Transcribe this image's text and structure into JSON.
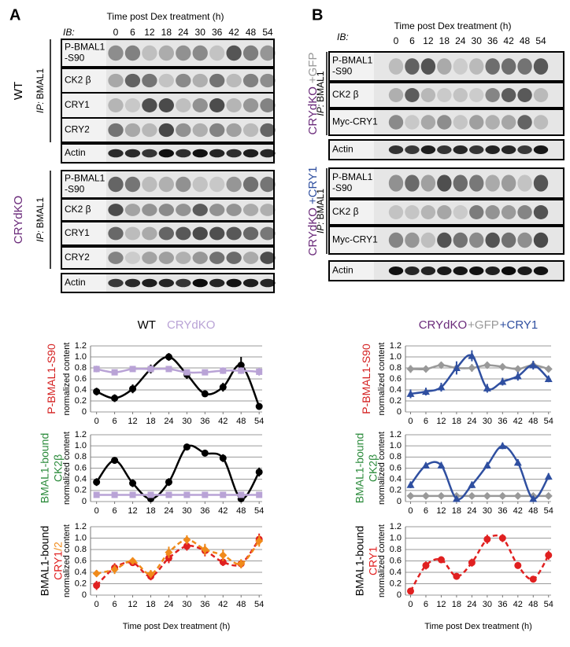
{
  "blots": [
    {
      "label": "A",
      "title": "Time post Dex treatment (h)",
      "ib": "IB:",
      "times": [
        "0",
        "6",
        "12",
        "18",
        "24",
        "30",
        "36",
        "42",
        "48",
        "54"
      ],
      "groups": [
        {
          "side": [
            {
              "text": "WT",
              "color": "#000000"
            }
          ],
          "ip": "IP:",
          "ip_target": "BMAL1",
          "rows": [
            [
              "P-BMAL1",
              "-S90"
            ],
            [
              "CK2 β"
            ],
            [
              "CRY1"
            ],
            [
              "CRY2"
            ],
            [
              "Actin"
            ]
          ]
        },
        {
          "side": [
            {
              "text": "CRYdKO",
              "color": "#6a2a7a"
            }
          ],
          "ip": "IP:",
          "ip_target": "BMAL1",
          "rows": [
            [
              "P-BMAL1",
              "-S90"
            ],
            [
              "CK2 β"
            ],
            [
              "CRY1"
            ],
            [
              "CRY2"
            ],
            [
              "Actin"
            ]
          ]
        }
      ]
    },
    {
      "label": "B",
      "title": "Time post Dex treatment (h)",
      "ib": "IB:",
      "times": [
        "0",
        "6",
        "12",
        "18",
        "24",
        "30",
        "36",
        "42",
        "48",
        "54"
      ],
      "groups": [
        {
          "side": [
            {
              "text": "CRYdKO",
              "color": "#6a2a7a"
            },
            {
              "text": "+GFP",
              "color": "#999999"
            }
          ],
          "ip": "IP:",
          "ip_target": "BMAL1",
          "rows": [
            [
              "P-BMAL1",
              "-S90"
            ],
            [
              "CK2 β"
            ],
            [
              "Myc-CRY1"
            ],
            [
              "Actin"
            ]
          ]
        },
        {
          "side": [
            {
              "text": "CRYdKO",
              "color": "#6a2a7a"
            },
            {
              "text": "+CRY1",
              "color": "#2f4fa0"
            }
          ],
          "ip": "IP:",
          "ip_target": "BMAL1",
          "rows": [
            [
              "P-BMAL1",
              "-S90"
            ],
            [
              "CK2 β"
            ],
            [
              "Myc-CRY1"
            ],
            [
              "Actin"
            ]
          ]
        }
      ]
    }
  ],
  "chart_data": [
    {
      "type": "line",
      "ylabel": "normalized content",
      "row_label": [
        [
          {
            "text": "P-BMAL1-S90",
            "color": "#d42020"
          }
        ]
      ],
      "x": [
        0,
        6,
        12,
        18,
        24,
        30,
        36,
        42,
        48,
        54
      ],
      "xlim": [
        -2,
        55
      ],
      "xticks": [
        0,
        6,
        12,
        18,
        24,
        30,
        36,
        42,
        48,
        54
      ],
      "ylim": [
        0,
        1.2
      ],
      "yticks": [
        0,
        0.2,
        0.4,
        0.6,
        0.8,
        {
          "value": 1,
          "label": "1.0"
        },
        1.2
      ],
      "grid": true,
      "series": [
        {
          "name": "WT",
          "color": "#000000",
          "marker": "circle",
          "values": [
            0.37,
            0.25,
            0.42,
            0.78,
            1.0,
            0.68,
            0.33,
            0.45,
            0.85,
            0.1
          ],
          "errors": [
            0.07,
            0.07,
            0.08,
            0.08,
            0.07,
            0.08,
            0.05,
            0.08,
            0.15,
            0.06
          ]
        },
        {
          "name": "CRYdKO",
          "color": "#b9a3d6",
          "marker": "square",
          "values": [
            0.78,
            0.72,
            0.78,
            0.78,
            0.78,
            0.72,
            0.72,
            0.75,
            0.75,
            0.73
          ],
          "errors": [
            0.06,
            0.05,
            0.05,
            0.06,
            0.05,
            0.05,
            0.05,
            0.06,
            0.06,
            0.07
          ]
        }
      ]
    },
    {
      "type": "line",
      "ylabel": "normalized content",
      "row_label": [
        [
          {
            "text": "BMAL1-bound",
            "color": "#2a8a3a"
          }
        ],
        [
          {
            "text": "CK2β",
            "color": "#2a8a3a"
          }
        ]
      ],
      "x": [
        0,
        6,
        12,
        18,
        24,
        30,
        36,
        42,
        48,
        54
      ],
      "xlim": [
        -2,
        55
      ],
      "xticks": [
        0,
        6,
        12,
        18,
        24,
        30,
        36,
        42,
        48,
        54
      ],
      "ylim": [
        0,
        1.2
      ],
      "yticks": [
        0,
        0.2,
        0.4,
        0.6,
        0.8,
        {
          "value": 1,
          "label": "1.0"
        },
        1.2
      ],
      "grid": true,
      "series": [
        {
          "color": "#000000",
          "marker": "circle",
          "values": [
            0.35,
            0.74,
            0.33,
            0.05,
            0.35,
            0.98,
            0.87,
            0.78,
            0.05,
            0.53
          ],
          "errors": [
            0.07,
            0.05,
            0.07,
            0.04,
            0.07,
            0.06,
            0.06,
            0.07,
            0.05,
            0.08
          ]
        },
        {
          "color": "#b9a3d6",
          "marker": "square",
          "values": [
            0.12,
            0.12,
            0.12,
            0.12,
            0.12,
            0.12,
            0.12,
            0.12,
            0.12,
            0.12
          ],
          "errors": [
            0.03,
            0.03,
            0.03,
            0.03,
            0.03,
            0.03,
            0.03,
            0.03,
            0.03,
            0.03
          ]
        }
      ]
    },
    {
      "type": "line",
      "ylabel": "normalized content",
      "xlabel": "Time post Dex treatment (h)",
      "row_label": [
        [
          {
            "text": "BMAL1-bound",
            "color": "#000000"
          }
        ],
        [
          {
            "text": "CRY1",
            "color": "#e02020"
          },
          {
            "text": "/2",
            "color": "#f08a1a"
          }
        ]
      ],
      "x": [
        0,
        6,
        12,
        18,
        24,
        30,
        36,
        42,
        48,
        54
      ],
      "xlim": [
        -2,
        55
      ],
      "xticks": [
        0,
        6,
        12,
        18,
        24,
        30,
        36,
        42,
        48,
        54
      ],
      "ylim": [
        0,
        1.2
      ],
      "yticks": [
        0,
        0.2,
        0.4,
        0.6,
        0.8,
        {
          "value": 1,
          "label": "1.0"
        },
        1.2
      ],
      "grid": true,
      "series": [
        {
          "color": "#e02020",
          "marker": "circle",
          "dash": true,
          "values": [
            0.17,
            0.48,
            0.57,
            0.33,
            0.65,
            0.86,
            0.78,
            0.58,
            0.55,
            0.98
          ],
          "errors": [
            0.08,
            0.08,
            0.06,
            0.07,
            0.09,
            0.08,
            0.1,
            0.07,
            0.07,
            0.1
          ]
        },
        {
          "color": "#f08a1a",
          "marker": "diamond",
          "dash": true,
          "values": [
            0.38,
            0.45,
            0.6,
            0.37,
            0.75,
            0.97,
            0.8,
            0.7,
            0.55,
            0.95
          ],
          "errors": [
            0.06,
            0.08,
            0.06,
            0.07,
            0.1,
            0.08,
            0.1,
            0.1,
            0.08,
            0.1
          ]
        }
      ]
    },
    {
      "type": "line",
      "ylabel": "normalized content",
      "title": "CRYdKO",
      "title_color": "#6a2a7a",
      "row_label": [
        [
          {
            "text": "P-BMAL1-S90",
            "color": "#d42020"
          }
        ]
      ],
      "x": [
        0,
        6,
        12,
        18,
        24,
        30,
        36,
        42,
        48,
        54
      ],
      "xlim": [
        -2,
        55
      ],
      "xticks": [
        0,
        6,
        12,
        18,
        24,
        30,
        36,
        42,
        48,
        54
      ],
      "ylim": [
        0,
        1.2
      ],
      "yticks": [
        0,
        0.2,
        0.4,
        0.6,
        0.8,
        {
          "value": 1,
          "label": "1.0"
        },
        1.2
      ],
      "grid": true,
      "series": [
        {
          "name": "+GFP",
          "color": "#999999",
          "marker": "diamond",
          "values": [
            0.78,
            0.78,
            0.85,
            0.8,
            0.8,
            0.85,
            0.82,
            0.78,
            0.85,
            0.78
          ],
          "errors": [
            0.07,
            0.06,
            0.06,
            0.06,
            0.07,
            0.06,
            0.06,
            0.06,
            0.06,
            0.06
          ]
        },
        {
          "name": "+CRY1",
          "color": "#2f4fa0",
          "marker": "triangle",
          "values": [
            0.33,
            0.37,
            0.45,
            0.8,
            1.02,
            0.43,
            0.55,
            0.65,
            0.85,
            0.6
          ],
          "errors": [
            0.08,
            0.07,
            0.08,
            0.12,
            0.1,
            0.08,
            0.07,
            0.08,
            0.08,
            0.06
          ]
        }
      ]
    },
    {
      "type": "line",
      "ylabel": "normalized content",
      "row_label": [
        [
          {
            "text": "BMAL1-bound",
            "color": "#2a8a3a"
          }
        ],
        [
          {
            "text": "CK2β",
            "color": "#2a8a3a"
          }
        ]
      ],
      "x": [
        0,
        6,
        12,
        18,
        24,
        30,
        36,
        42,
        48,
        54
      ],
      "xlim": [
        -2,
        55
      ],
      "xticks": [
        0,
        6,
        12,
        18,
        24,
        30,
        36,
        42,
        48,
        54
      ],
      "ylim": [
        0,
        1.2
      ],
      "yticks": [
        0,
        0.2,
        0.4,
        0.6,
        0.8,
        {
          "value": 1,
          "label": "1.0"
        },
        1.2
      ],
      "grid": true,
      "series": [
        {
          "color": "#999999",
          "marker": "diamond",
          "values": [
            0.1,
            0.1,
            0.1,
            0.1,
            0.1,
            0.1,
            0.1,
            0.1,
            0.1,
            0.1
          ],
          "errors": [
            0.03,
            0.03,
            0.03,
            0.03,
            0.03,
            0.03,
            0.03,
            0.03,
            0.03,
            0.03
          ]
        },
        {
          "color": "#2f4fa0",
          "marker": "triangle",
          "values": [
            0.3,
            0.65,
            0.65,
            0.05,
            0.3,
            0.65,
            1.0,
            0.7,
            0.05,
            0.45
          ],
          "errors": [
            0.06,
            0.05,
            0.06,
            0.04,
            0.06,
            0.06,
            0.06,
            0.06,
            0.04,
            0.06
          ]
        }
      ]
    },
    {
      "type": "line",
      "ylabel": "normalized content",
      "xlabel": "Time post Dex treatment (h)",
      "row_label": [
        [
          {
            "text": "BMAL1-bound",
            "color": "#000000"
          }
        ],
        [
          {
            "text": "CRY1",
            "color": "#e02020"
          }
        ]
      ],
      "x": [
        0,
        6,
        12,
        18,
        24,
        30,
        36,
        42,
        48,
        54
      ],
      "xlim": [
        -2,
        55
      ],
      "xticks": [
        0,
        6,
        12,
        18,
        24,
        30,
        36,
        42,
        48,
        54
      ],
      "ylim": [
        0,
        1.2
      ],
      "yticks": [
        0,
        0.2,
        0.4,
        0.6,
        0.8,
        {
          "value": 1,
          "label": "1.0"
        },
        1.2
      ],
      "grid": true,
      "series": [
        {
          "color": "#e02020",
          "marker": "circle",
          "dash": true,
          "values": [
            0.07,
            0.52,
            0.62,
            0.33,
            0.57,
            0.98,
            1.0,
            0.52,
            0.28,
            0.7
          ],
          "errors": [
            0.04,
            0.07,
            0.06,
            0.05,
            0.07,
            0.08,
            0.07,
            0.06,
            0.05,
            0.08
          ]
        }
      ]
    }
  ]
}
